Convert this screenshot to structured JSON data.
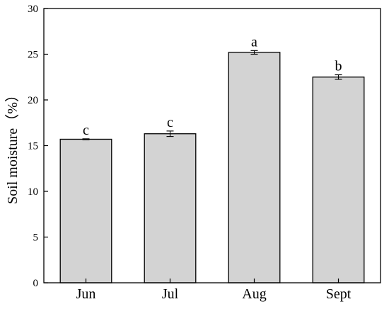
{
  "chart_data": {
    "type": "bar",
    "categories": [
      "Jun",
      "Jul",
      "Aug",
      "Sept"
    ],
    "values": [
      15.7,
      16.3,
      25.2,
      22.5
    ],
    "errors": [
      0.05,
      0.3,
      0.2,
      0.25
    ],
    "significance_letters": [
      "c",
      "c",
      "a",
      "b"
    ],
    "ylabel": "Soil moisture（%）",
    "xlabel": "",
    "ylim": [
      0,
      30
    ],
    "yticks": [
      0,
      5,
      10,
      15,
      20,
      25,
      30
    ],
    "bar_color": "#d3d3d3",
    "grid": false
  }
}
